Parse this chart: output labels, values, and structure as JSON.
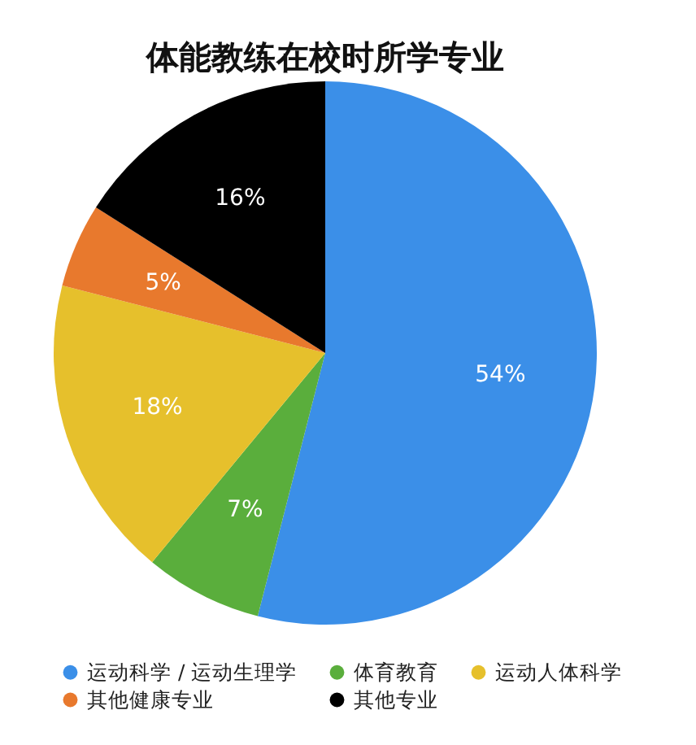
{
  "chart_data": {
    "type": "pie",
    "title": "体能教练在校时所学专业",
    "categories": [
      "运动科学 / 运动生理学",
      "体育教育",
      "运动人体科学",
      "其他健康专业",
      "其他专业"
    ],
    "values": [
      54,
      7,
      18,
      5,
      16
    ],
    "colors": [
      "#3b8fe8",
      "#5aae3c",
      "#e6c02c",
      "#e8792d",
      "#000000"
    ],
    "value_labels": [
      "54%",
      "7%",
      "18%",
      "5%",
      "16%"
    ],
    "legend": "bottom"
  }
}
